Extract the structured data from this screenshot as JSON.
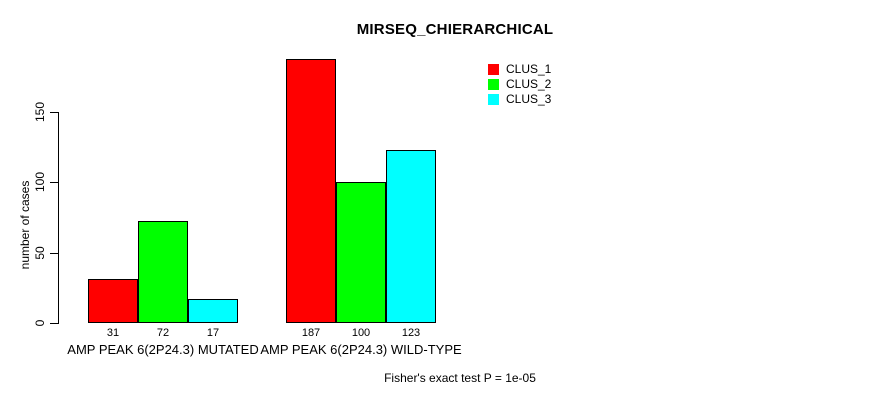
{
  "chart_data": {
    "type": "bar",
    "title": "MIRSEQ_CHIERARCHICAL",
    "ylabel": "number of cases",
    "xlabel": "",
    "categories": [
      "AMP PEAK 6(2P24.3) MUTATED",
      "AMP PEAK 6(2P24.3) WILD-TYPE"
    ],
    "series": [
      {
        "name": "CLUS_1",
        "color": "#ff0000",
        "values": [
          31,
          187
        ]
      },
      {
        "name": "CLUS_2",
        "color": "#00ff00",
        "values": [
          72,
          100
        ]
      },
      {
        "name": "CLUS_3",
        "color": "#00ffff",
        "values": [
          17,
          123
        ]
      }
    ],
    "show_bar_values": true,
    "yticks": [
      0,
      50,
      100,
      150
    ],
    "ylim": [
      0,
      190
    ],
    "grid": false,
    "legend_position": "top-right",
    "bar_border_color": "#000000",
    "background_color": "#ffffff",
    "annotation": "Fisher's exact test P = 1e-05"
  }
}
